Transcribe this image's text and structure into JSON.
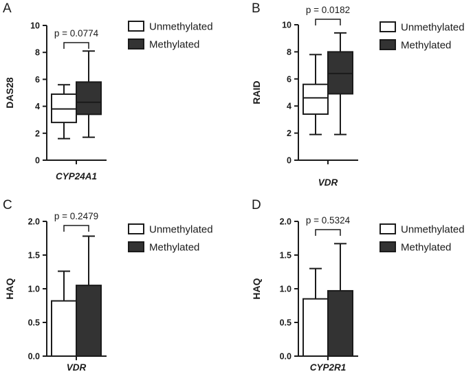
{
  "chart_data": [
    {
      "panel": "A",
      "type": "box",
      "ylabel": "DAS28",
      "xlabel": "CYP24A1",
      "ylim": [
        0,
        10
      ],
      "yticks": [
        "0",
        "2",
        "4",
        "6",
        "8",
        "10"
      ],
      "pvalue": "p = 0.0774",
      "legend": [
        "Unmethylated",
        "Methylated"
      ],
      "series": [
        {
          "name": "Unmethylated",
          "color": "#ffffff",
          "min": 1.6,
          "q1": 2.8,
          "median": 3.8,
          "q3": 4.9,
          "max": 5.6
        },
        {
          "name": "Methylated",
          "color": "#333333",
          "min": 1.7,
          "q1": 3.4,
          "median": 4.3,
          "q3": 5.8,
          "max": 8.1
        }
      ]
    },
    {
      "panel": "B",
      "type": "box",
      "ylabel": "RAID",
      "xlabel": "VDR",
      "ylim": [
        0,
        10
      ],
      "yticks": [
        "0",
        "2",
        "4",
        "6",
        "8",
        "10"
      ],
      "pvalue": "p = 0.0182",
      "legend": [
        "Unmethylated",
        "Methylated"
      ],
      "series": [
        {
          "name": "Unmethylated",
          "color": "#ffffff",
          "min": 1.9,
          "q1": 3.4,
          "median": 4.6,
          "q3": 5.6,
          "max": 7.8
        },
        {
          "name": "Methylated",
          "color": "#333333",
          "min": 1.9,
          "q1": 4.9,
          "median": 6.4,
          "q3": 8.0,
          "max": 9.4
        }
      ]
    },
    {
      "panel": "C",
      "type": "bar",
      "ylabel": "HAQ",
      "xlabel": "VDR",
      "ylim": [
        0,
        2.0
      ],
      "yticks": [
        "0.0",
        "0.5",
        "1.0",
        "1.5",
        "2.0"
      ],
      "pvalue": "p = 0.2479",
      "legend": [
        "Unmethylated",
        "Methylated"
      ],
      "series": [
        {
          "name": "Unmethylated",
          "color": "#ffffff",
          "value": 0.82,
          "error": 1.26
        },
        {
          "name": "Methylated",
          "color": "#333333",
          "value": 1.05,
          "error": 1.78
        }
      ]
    },
    {
      "panel": "D",
      "type": "bar",
      "ylabel": "HAQ",
      "xlabel": "CYP2R1",
      "ylim": [
        0,
        2.0
      ],
      "yticks": [
        "0.0",
        "0.5",
        "1.0",
        "1.5",
        "2.0"
      ],
      "pvalue": "p = 0.5324",
      "legend": [
        "Unmethylated",
        "Methylated"
      ],
      "series": [
        {
          "name": "Unmethylated",
          "color": "#ffffff",
          "value": 0.85,
          "error": 1.3
        },
        {
          "name": "Methylated",
          "color": "#333333",
          "value": 0.97,
          "error": 1.67
        }
      ]
    }
  ]
}
